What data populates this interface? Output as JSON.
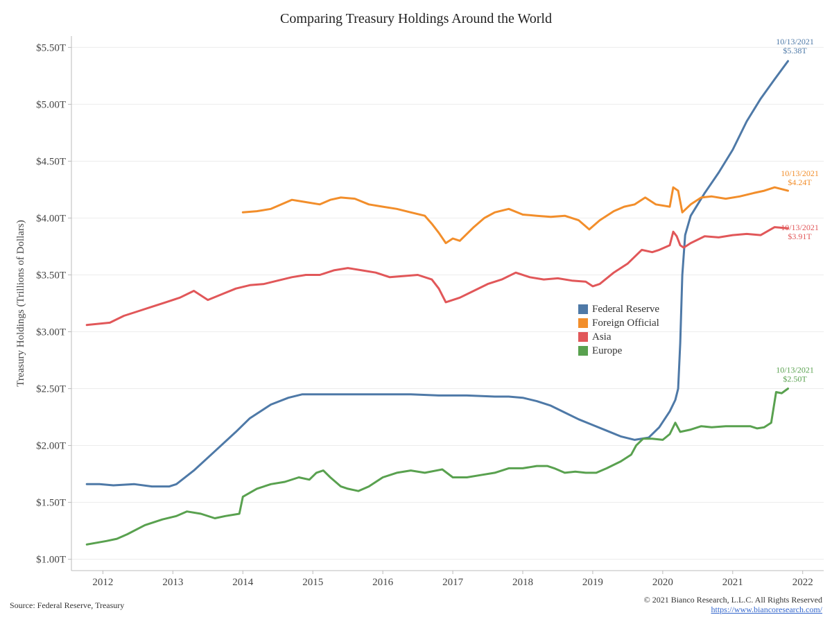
{
  "title": "Comparing Treasury Holdings Around the World",
  "source": "Source: Federal Reserve, Treasury",
  "copyright": "© 2021 Bianco Research, L.L.C. All Rights Reserved",
  "url": "https://www.biancoresearch.com/",
  "chart_data": {
    "type": "line",
    "title": "Comparing Treasury Holdings Around the World",
    "xlabel": "",
    "ylabel": "Treasury Holdings (Trillions of Dollars)",
    "xlim": [
      2011.55,
      2022.3
    ],
    "ylim": [
      0.9,
      5.6
    ],
    "x_ticks": [
      2012,
      2013,
      2014,
      2015,
      2016,
      2017,
      2018,
      2019,
      2020,
      2021,
      2022
    ],
    "x_tick_labels": [
      "2012",
      "2013",
      "2014",
      "2015",
      "2016",
      "2017",
      "2018",
      "2019",
      "2020",
      "2021",
      "2022"
    ],
    "y_ticks": [
      1.0,
      1.5,
      2.0,
      2.5,
      3.0,
      3.5,
      4.0,
      4.5,
      5.0,
      5.5
    ],
    "y_tick_labels": [
      "$1.00T",
      "$1.50T",
      "$2.00T",
      "$2.50T",
      "$3.00T",
      "$3.50T",
      "$4.00T",
      "$4.50T",
      "$5.00T",
      "$5.50T"
    ],
    "grid": "horizontal",
    "legend_position": "center-right",
    "series": [
      {
        "name": "Federal Reserve",
        "color": "#4e79a7",
        "x": [
          2011.77,
          2011.95,
          2012.15,
          2012.45,
          2012.7,
          2012.95,
          2013.05,
          2013.3,
          2013.6,
          2013.9,
          2014.1,
          2014.4,
          2014.65,
          2014.85,
          2015.2,
          2015.6,
          2016.0,
          2016.4,
          2016.8,
          2017.2,
          2017.6,
          2017.8,
          2018.0,
          2018.2,
          2018.4,
          2018.6,
          2018.8,
          2019.0,
          2019.2,
          2019.4,
          2019.6,
          2019.8,
          2019.95,
          2020.1,
          2020.18,
          2020.22,
          2020.25,
          2020.28,
          2020.32,
          2020.4,
          2020.5,
          2020.6,
          2020.8,
          2021.0,
          2021.2,
          2021.4,
          2021.6,
          2021.79
        ],
        "y": [
          1.66,
          1.66,
          1.65,
          1.66,
          1.64,
          1.64,
          1.66,
          1.78,
          1.95,
          2.12,
          2.24,
          2.36,
          2.42,
          2.45,
          2.45,
          2.45,
          2.45,
          2.45,
          2.44,
          2.44,
          2.43,
          2.43,
          2.42,
          2.39,
          2.35,
          2.29,
          2.23,
          2.18,
          2.13,
          2.08,
          2.05,
          2.07,
          2.16,
          2.3,
          2.4,
          2.5,
          2.9,
          3.5,
          3.85,
          4.02,
          4.12,
          4.22,
          4.4,
          4.6,
          4.85,
          5.05,
          5.22,
          5.38
        ]
      },
      {
        "name": "Foreign Official",
        "color": "#f28e2b",
        "x": [
          2014.0,
          2014.2,
          2014.4,
          2014.55,
          2014.7,
          2014.9,
          2015.1,
          2015.25,
          2015.4,
          2015.6,
          2015.8,
          2016.0,
          2016.2,
          2016.4,
          2016.6,
          2016.7,
          2016.8,
          2016.9,
          2017.0,
          2017.1,
          2017.2,
          2017.3,
          2017.45,
          2017.6,
          2017.8,
          2018.0,
          2018.2,
          2018.4,
          2018.6,
          2018.8,
          2018.95,
          2019.1,
          2019.3,
          2019.45,
          2019.6,
          2019.75,
          2019.9,
          2020.1,
          2020.15,
          2020.22,
          2020.28,
          2020.4,
          2020.55,
          2020.7,
          2020.9,
          2021.1,
          2021.3,
          2021.45,
          2021.6,
          2021.79
        ],
        "y": [
          4.05,
          4.06,
          4.08,
          4.12,
          4.16,
          4.14,
          4.12,
          4.16,
          4.18,
          4.17,
          4.12,
          4.1,
          4.08,
          4.05,
          4.02,
          3.95,
          3.87,
          3.78,
          3.82,
          3.8,
          3.86,
          3.92,
          4.0,
          4.05,
          4.08,
          4.03,
          4.02,
          4.01,
          4.02,
          3.98,
          3.9,
          3.98,
          4.06,
          4.1,
          4.12,
          4.18,
          4.12,
          4.1,
          4.27,
          4.24,
          4.05,
          4.12,
          4.18,
          4.19,
          4.17,
          4.19,
          4.22,
          4.24,
          4.27,
          4.24
        ]
      },
      {
        "name": "Asia",
        "color": "#e15759",
        "x": [
          2011.77,
          2012.1,
          2012.3,
          2012.5,
          2012.7,
          2012.9,
          2013.1,
          2013.3,
          2013.5,
          2013.7,
          2013.9,
          2014.1,
          2014.3,
          2014.5,
          2014.7,
          2014.9,
          2015.1,
          2015.3,
          2015.5,
          2015.7,
          2015.9,
          2016.1,
          2016.3,
          2016.5,
          2016.7,
          2016.8,
          2016.9,
          2017.1,
          2017.3,
          2017.5,
          2017.7,
          2017.9,
          2018.1,
          2018.3,
          2018.5,
          2018.7,
          2018.9,
          2019.0,
          2019.1,
          2019.3,
          2019.5,
          2019.7,
          2019.85,
          2019.95,
          2020.1,
          2020.15,
          2020.2,
          2020.25,
          2020.3,
          2020.4,
          2020.6,
          2020.8,
          2021.0,
          2021.2,
          2021.4,
          2021.6,
          2021.79
        ],
        "y": [
          3.06,
          3.08,
          3.14,
          3.18,
          3.22,
          3.26,
          3.3,
          3.36,
          3.28,
          3.33,
          3.38,
          3.41,
          3.42,
          3.45,
          3.48,
          3.5,
          3.5,
          3.54,
          3.56,
          3.54,
          3.52,
          3.48,
          3.49,
          3.5,
          3.46,
          3.38,
          3.26,
          3.3,
          3.36,
          3.42,
          3.46,
          3.52,
          3.48,
          3.46,
          3.47,
          3.45,
          3.44,
          3.4,
          3.42,
          3.52,
          3.6,
          3.72,
          3.7,
          3.72,
          3.76,
          3.88,
          3.84,
          3.76,
          3.74,
          3.78,
          3.84,
          3.83,
          3.85,
          3.86,
          3.85,
          3.92,
          3.91
        ]
      },
      {
        "name": "Europe",
        "color": "#59a14f",
        "x": [
          2011.77,
          2012.05,
          2012.2,
          2012.35,
          2012.6,
          2012.85,
          2013.05,
          2013.2,
          2013.4,
          2013.6,
          2013.75,
          2013.95,
          2014.0,
          2014.2,
          2014.4,
          2014.6,
          2014.8,
          2014.95,
          2015.05,
          2015.15,
          2015.25,
          2015.4,
          2015.5,
          2015.65,
          2015.8,
          2016.0,
          2016.2,
          2016.4,
          2016.6,
          2016.85,
          2017.0,
          2017.2,
          2017.4,
          2017.6,
          2017.8,
          2018.0,
          2018.2,
          2018.35,
          2018.45,
          2018.6,
          2018.75,
          2018.9,
          2019.05,
          2019.2,
          2019.4,
          2019.55,
          2019.62,
          2019.72,
          2019.85,
          2020.0,
          2020.1,
          2020.18,
          2020.25,
          2020.4,
          2020.55,
          2020.7,
          2020.9,
          2021.1,
          2021.25,
          2021.35,
          2021.45,
          2021.55,
          2021.62,
          2021.7,
          2021.79
        ],
        "y": [
          1.13,
          1.16,
          1.18,
          1.22,
          1.3,
          1.35,
          1.38,
          1.42,
          1.4,
          1.36,
          1.38,
          1.4,
          1.55,
          1.62,
          1.66,
          1.68,
          1.72,
          1.7,
          1.76,
          1.78,
          1.72,
          1.64,
          1.62,
          1.6,
          1.64,
          1.72,
          1.76,
          1.78,
          1.76,
          1.79,
          1.72,
          1.72,
          1.74,
          1.76,
          1.8,
          1.8,
          1.82,
          1.82,
          1.8,
          1.76,
          1.77,
          1.76,
          1.76,
          1.8,
          1.86,
          1.92,
          2.0,
          2.06,
          2.06,
          2.05,
          2.1,
          2.2,
          2.12,
          2.14,
          2.17,
          2.16,
          2.17,
          2.17,
          2.17,
          2.15,
          2.16,
          2.2,
          2.47,
          2.46,
          2.5
        ]
      }
    ],
    "annotations": [
      {
        "series": "Federal Reserve",
        "date": "10/13/2021",
        "value": "$5.38T"
      },
      {
        "series": "Foreign Official",
        "date": "10/13/2021",
        "value": "$4.24T"
      },
      {
        "series": "Asia",
        "date": "10/13/2021",
        "value": "$3.91T"
      },
      {
        "series": "Europe",
        "date": "10/13/2021",
        "value": "$2.50T"
      }
    ]
  }
}
